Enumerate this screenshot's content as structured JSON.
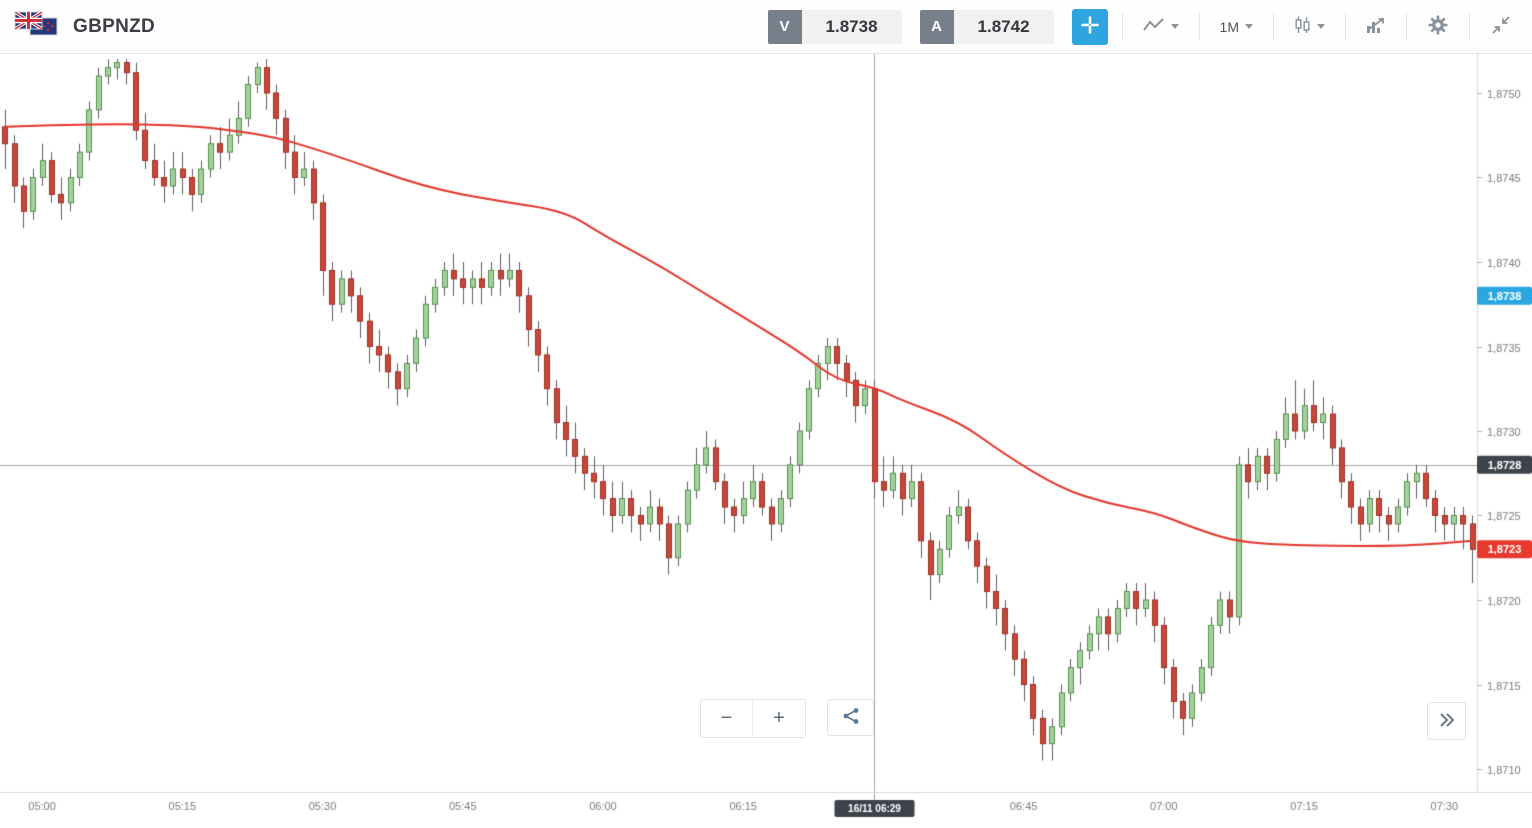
{
  "header": {
    "symbol": "GBPNZD",
    "sell": {
      "label": "V",
      "value": "1.8738"
    },
    "ask": {
      "label": "A",
      "value": "1.8742"
    },
    "timeframe": {
      "label": "1M"
    }
  },
  "controls": {
    "zoom_out": "−",
    "zoom_in": "+"
  },
  "icons": {
    "flags": "gbp-nzd-flag-pair",
    "crosshair": "crosshair-plus",
    "chart_type": "line-chart",
    "candle_style": "candlesticks",
    "indicators": "histogram-with-arrow",
    "settings": "gear",
    "collapse": "collapse-diagonal-arrows",
    "share": "share-nodes",
    "expand_panel": "double-chevron-right"
  },
  "axis": {
    "price_labels": [
      {
        "p": 1.875,
        "t": "1,8750"
      },
      {
        "p": 1.8745,
        "t": "1,8745"
      },
      {
        "p": 1.874,
        "t": "1,8740"
      },
      {
        "p": 1.8735,
        "t": "1,8735"
      },
      {
        "p": 1.873,
        "t": "1,8730"
      },
      {
        "p": 1.8725,
        "t": "1,8725"
      },
      {
        "p": 1.872,
        "t": "1,8720"
      },
      {
        "p": 1.8715,
        "t": "1,8715"
      },
      {
        "p": 1.871,
        "t": "1,8710"
      }
    ],
    "time_labels": [
      {
        "i": 4,
        "t": "05:00"
      },
      {
        "i": 19,
        "t": "05:15"
      },
      {
        "i": 34,
        "t": "05:30"
      },
      {
        "i": 49,
        "t": "05:45"
      },
      {
        "i": 64,
        "t": "06:00"
      },
      {
        "i": 79,
        "t": "06:15"
      },
      {
        "i": 94,
        "t": "06:30"
      },
      {
        "i": 109,
        "t": "06:45"
      },
      {
        "i": 124,
        "t": "07:00"
      },
      {
        "i": 139,
        "t": "07:15"
      },
      {
        "i": 154,
        "t": "07:30"
      }
    ],
    "badges": {
      "sell": {
        "price": 1.8738,
        "text": "1,8738",
        "color": "#2aa7e1"
      },
      "crosshair": {
        "price": 1.8728,
        "text": "1,8728",
        "color": "#3d444c"
      },
      "last": {
        "price": 1.8723,
        "text": "1,8723",
        "color": "#e8392e"
      }
    },
    "crosshair": {
      "i": 93,
      "price": 1.8728,
      "time_text": "16/11 06:29"
    }
  },
  "chart_data": {
    "type": "candlestick",
    "title": "GBPNZD 1-minute candlestick chart",
    "symbol": "GBPNZD",
    "interval": "1M",
    "date": "16/11",
    "visible_time_range": [
      "04:56",
      "07:33"
    ],
    "ylim": [
      1.8709,
      1.8753
    ],
    "grid": false,
    "price_axis_side": "right",
    "colors": {
      "up_fill": "#a5cf9f",
      "up_border": "#55934e",
      "down_fill": "#c8473b",
      "down_border": "#9e3226",
      "wick": "#5f5f5f",
      "crosshair": "#a6a6a6",
      "axis_text": "#7d7d7d",
      "axis_line": "#d9d9d9",
      "time_badge_bg": "#3c434b"
    },
    "ma_line": {
      "name": "moving-average",
      "color": "#e5352b",
      "points": [
        [
          0,
          1.8748
        ],
        [
          14,
          1.87483
        ],
        [
          27,
          1.87477
        ],
        [
          35,
          1.87464
        ],
        [
          45,
          1.87444
        ],
        [
          53,
          1.87436
        ],
        [
          60,
          1.8743
        ],
        [
          64,
          1.87416
        ],
        [
          70,
          1.87398
        ],
        [
          75,
          1.87381
        ],
        [
          80,
          1.87364
        ],
        [
          85,
          1.87347
        ],
        [
          89,
          1.8733
        ],
        [
          93,
          1.87326
        ],
        [
          96,
          1.87318
        ],
        [
          102,
          1.87306
        ],
        [
          107,
          1.87286
        ],
        [
          113,
          1.87266
        ],
        [
          118,
          1.87257
        ],
        [
          123,
          1.87252
        ],
        [
          127,
          1.87243
        ],
        [
          132,
          1.87234
        ],
        [
          140,
          1.87232
        ],
        [
          150,
          1.87232
        ],
        [
          157,
          1.87235
        ]
      ]
    },
    "candles": [
      [
        "04:56",
        1.8748,
        1.8749,
        1.87455,
        1.8747
      ],
      [
        "04:57",
        1.8747,
        1.87475,
        1.87435,
        1.87445
      ],
      [
        "04:58",
        1.87445,
        1.8745,
        1.8742,
        1.8743
      ],
      [
        "04:59",
        1.8743,
        1.87455,
        1.87425,
        1.8745
      ],
      [
        "05:00",
        1.8745,
        1.8747,
        1.87445,
        1.8746
      ],
      [
        "05:01",
        1.8746,
        1.87465,
        1.87435,
        1.8744
      ],
      [
        "05:02",
        1.8744,
        1.8745,
        1.87425,
        1.87435
      ],
      [
        "05:03",
        1.87435,
        1.87455,
        1.8743,
        1.8745
      ],
      [
        "05:04",
        1.8745,
        1.8747,
        1.87445,
        1.87465
      ],
      [
        "05:05",
        1.87465,
        1.87495,
        1.8746,
        1.8749
      ],
      [
        "05:06",
        1.8749,
        1.87515,
        1.87485,
        1.8751
      ],
      [
        "05:07",
        1.8751,
        1.8752,
        1.87505,
        1.87515
      ],
      [
        "05:08",
        1.87515,
        1.8752,
        1.87508,
        1.87518
      ],
      [
        "05:09",
        1.87518,
        1.8752,
        1.87505,
        1.87512
      ],
      [
        "05:10",
        1.87512,
        1.87518,
        1.87472,
        1.87478
      ],
      [
        "05:11",
        1.87478,
        1.87488,
        1.87455,
        1.8746
      ],
      [
        "05:12",
        1.8746,
        1.8747,
        1.87445,
        1.8745
      ],
      [
        "05:13",
        1.8745,
        1.8746,
        1.87435,
        1.87445
      ],
      [
        "05:14",
        1.87445,
        1.87465,
        1.8744,
        1.87455
      ],
      [
        "05:15",
        1.87455,
        1.87465,
        1.8744,
        1.8745
      ],
      [
        "05:16",
        1.8745,
        1.87455,
        1.8743,
        1.8744
      ],
      [
        "05:17",
        1.8744,
        1.8746,
        1.87435,
        1.87455
      ],
      [
        "05:18",
        1.87455,
        1.87475,
        1.8745,
        1.8747
      ],
      [
        "05:19",
        1.8747,
        1.8748,
        1.87455,
        1.87465
      ],
      [
        "05:20",
        1.87465,
        1.87485,
        1.8746,
        1.87475
      ],
      [
        "05:21",
        1.87475,
        1.87495,
        1.8747,
        1.87485
      ],
      [
        "05:22",
        1.87485,
        1.8751,
        1.8748,
        1.87505
      ],
      [
        "05:23",
        1.87505,
        1.87518,
        1.875,
        1.87515
      ],
      [
        "05:24",
        1.87515,
        1.8752,
        1.8749,
        1.875
      ],
      [
        "05:25",
        1.875,
        1.87505,
        1.87475,
        1.87485
      ],
      [
        "05:26",
        1.87485,
        1.8749,
        1.87455,
        1.87465
      ],
      [
        "05:27",
        1.87465,
        1.87475,
        1.8744,
        1.8745
      ],
      [
        "05:28",
        1.8745,
        1.87465,
        1.87445,
        1.87455
      ],
      [
        "05:29",
        1.87455,
        1.8746,
        1.87425,
        1.87435
      ],
      [
        "05:30",
        1.87435,
        1.8744,
        1.8738,
        1.87395
      ],
      [
        "05:31",
        1.87395,
        1.874,
        1.87365,
        1.87375
      ],
      [
        "05:32",
        1.87375,
        1.87395,
        1.8737,
        1.8739
      ],
      [
        "05:33",
        1.8739,
        1.87395,
        1.8737,
        1.8738
      ],
      [
        "05:34",
        1.8738,
        1.87385,
        1.87355,
        1.87365
      ],
      [
        "05:35",
        1.87365,
        1.8737,
        1.8734,
        1.8735
      ],
      [
        "05:36",
        1.8735,
        1.8736,
        1.87335,
        1.87345
      ],
      [
        "05:37",
        1.87345,
        1.8735,
        1.87325,
        1.87335
      ],
      [
        "05:38",
        1.87335,
        1.8734,
        1.87315,
        1.87325
      ],
      [
        "05:39",
        1.87325,
        1.87345,
        1.8732,
        1.8734
      ],
      [
        "05:40",
        1.8734,
        1.8736,
        1.87335,
        1.87355
      ],
      [
        "05:41",
        1.87355,
        1.8738,
        1.8735,
        1.87375
      ],
      [
        "05:42",
        1.87375,
        1.8739,
        1.8737,
        1.87385
      ],
      [
        "05:43",
        1.87385,
        1.874,
        1.8738,
        1.87395
      ],
      [
        "05:44",
        1.87395,
        1.87405,
        1.8738,
        1.8739
      ],
      [
        "05:45",
        1.8739,
        1.874,
        1.87375,
        1.87385
      ],
      [
        "05:46",
        1.87385,
        1.87395,
        1.87375,
        1.8739
      ],
      [
        "05:47",
        1.8739,
        1.874,
        1.87375,
        1.87385
      ],
      [
        "05:48",
        1.87385,
        1.874,
        1.8738,
        1.87395
      ],
      [
        "05:49",
        1.87395,
        1.87405,
        1.8738,
        1.8739
      ],
      [
        "05:50",
        1.8739,
        1.87405,
        1.87385,
        1.87395
      ],
      [
        "05:51",
        1.87395,
        1.874,
        1.8737,
        1.8738
      ],
      [
        "05:52",
        1.8738,
        1.87385,
        1.8735,
        1.8736
      ],
      [
        "05:53",
        1.8736,
        1.87365,
        1.87335,
        1.87345
      ],
      [
        "05:54",
        1.87345,
        1.8735,
        1.87315,
        1.87325
      ],
      [
        "05:55",
        1.87325,
        1.8733,
        1.87295,
        1.87305
      ],
      [
        "05:56",
        1.87305,
        1.87315,
        1.87285,
        1.87295
      ],
      [
        "05:57",
        1.87295,
        1.87305,
        1.87275,
        1.87285
      ],
      [
        "05:58",
        1.87285,
        1.8729,
        1.87265,
        1.87275
      ],
      [
        "05:59",
        1.87275,
        1.87285,
        1.8726,
        1.8727
      ],
      [
        "06:00",
        1.8727,
        1.8728,
        1.8725,
        1.8726
      ],
      [
        "06:01",
        1.8726,
        1.8727,
        1.8724,
        1.8725
      ],
      [
        "06:02",
        1.8725,
        1.8727,
        1.87245,
        1.8726
      ],
      [
        "06:03",
        1.8726,
        1.87265,
        1.8724,
        1.8725
      ],
      [
        "06:04",
        1.8725,
        1.87255,
        1.87235,
        1.87245
      ],
      [
        "06:05",
        1.87245,
        1.87265,
        1.8724,
        1.87255
      ],
      [
        "06:06",
        1.87255,
        1.8726,
        1.87235,
        1.87245
      ],
      [
        "06:07",
        1.87245,
        1.8725,
        1.87215,
        1.87225
      ],
      [
        "06:08",
        1.87225,
        1.8725,
        1.8722,
        1.87245
      ],
      [
        "06:09",
        1.87245,
        1.8727,
        1.8724,
        1.87265
      ],
      [
        "06:10",
        1.87265,
        1.8729,
        1.8726,
        1.8728
      ],
      [
        "06:11",
        1.8728,
        1.873,
        1.87275,
        1.8729
      ],
      [
        "06:12",
        1.8729,
        1.87295,
        1.87265,
        1.8727
      ],
      [
        "06:13",
        1.8727,
        1.87275,
        1.87245,
        1.87255
      ],
      [
        "06:14",
        1.87255,
        1.8726,
        1.8724,
        1.8725
      ],
      [
        "06:15",
        1.8725,
        1.8727,
        1.87245,
        1.8726
      ],
      [
        "06:16",
        1.8726,
        1.8728,
        1.87255,
        1.8727
      ],
      [
        "06:17",
        1.8727,
        1.87275,
        1.8725,
        1.87255
      ],
      [
        "06:18",
        1.87255,
        1.8726,
        1.87235,
        1.87245
      ],
      [
        "06:19",
        1.87245,
        1.87265,
        1.8724,
        1.8726
      ],
      [
        "06:20",
        1.8726,
        1.87285,
        1.87255,
        1.8728
      ],
      [
        "06:21",
        1.8728,
        1.87305,
        1.87275,
        1.873
      ],
      [
        "06:22",
        1.873,
        1.8733,
        1.87295,
        1.87325
      ],
      [
        "06:23",
        1.87325,
        1.87345,
        1.8732,
        1.8734
      ],
      [
        "06:24",
        1.8734,
        1.87355,
        1.8733,
        1.8735
      ],
      [
        "06:25",
        1.8735,
        1.87355,
        1.8733,
        1.8734
      ],
      [
        "06:26",
        1.8734,
        1.87345,
        1.8732,
        1.8733
      ],
      [
        "06:27",
        1.8733,
        1.87335,
        1.87305,
        1.87315
      ],
      [
        "06:28",
        1.87315,
        1.8733,
        1.8731,
        1.87325
      ],
      [
        "06:29",
        1.87325,
        1.8733,
        1.8726,
        1.8727
      ],
      [
        "06:30",
        1.8727,
        1.87285,
        1.87255,
        1.87265
      ],
      [
        "06:31",
        1.87265,
        1.87285,
        1.8726,
        1.87275
      ],
      [
        "06:32",
        1.87275,
        1.8728,
        1.8725,
        1.8726
      ],
      [
        "06:33",
        1.8726,
        1.8728,
        1.87255,
        1.8727
      ],
      [
        "06:34",
        1.8727,
        1.87275,
        1.87225,
        1.87235
      ],
      [
        "06:35",
        1.87235,
        1.8724,
        1.872,
        1.87215
      ],
      [
        "06:36",
        1.87215,
        1.87235,
        1.8721,
        1.8723
      ],
      [
        "06:37",
        1.8723,
        1.87255,
        1.87225,
        1.8725
      ],
      [
        "06:38",
        1.8725,
        1.87265,
        1.87245,
        1.87255
      ],
      [
        "06:39",
        1.87255,
        1.8726,
        1.8723,
        1.87235
      ],
      [
        "06:40",
        1.87235,
        1.8724,
        1.8721,
        1.8722
      ],
      [
        "06:41",
        1.8722,
        1.87225,
        1.87195,
        1.87205
      ],
      [
        "06:42",
        1.87205,
        1.87215,
        1.87185,
        1.87195
      ],
      [
        "06:43",
        1.87195,
        1.872,
        1.8717,
        1.8718
      ],
      [
        "06:44",
        1.8718,
        1.87185,
        1.87155,
        1.87165
      ],
      [
        "06:45",
        1.87165,
        1.8717,
        1.8714,
        1.8715
      ],
      [
        "06:46",
        1.8715,
        1.87155,
        1.8712,
        1.8713
      ],
      [
        "06:47",
        1.8713,
        1.87135,
        1.87105,
        1.87115
      ],
      [
        "06:48",
        1.87115,
        1.8713,
        1.87105,
        1.87125
      ],
      [
        "06:49",
        1.87125,
        1.8715,
        1.8712,
        1.87145
      ],
      [
        "06:50",
        1.87145,
        1.87165,
        1.8714,
        1.8716
      ],
      [
        "06:51",
        1.8716,
        1.87175,
        1.8715,
        1.8717
      ],
      [
        "06:52",
        1.8717,
        1.87185,
        1.87165,
        1.8718
      ],
      [
        "06:53",
        1.8718,
        1.87195,
        1.8717,
        1.8719
      ],
      [
        "06:54",
        1.8719,
        1.87195,
        1.8717,
        1.8718
      ],
      [
        "06:55",
        1.8718,
        1.872,
        1.87175,
        1.87195
      ],
      [
        "06:56",
        1.87195,
        1.8721,
        1.8719,
        1.87205
      ],
      [
        "06:57",
        1.87205,
        1.8721,
        1.87185,
        1.87195
      ],
      [
        "06:58",
        1.87195,
        1.8721,
        1.8719,
        1.872
      ],
      [
        "06:59",
        1.872,
        1.87205,
        1.87175,
        1.87185
      ],
      [
        "07:00",
        1.87185,
        1.8719,
        1.8715,
        1.8716
      ],
      [
        "07:01",
        1.8716,
        1.87165,
        1.8713,
        1.8714
      ],
      [
        "07:02",
        1.8714,
        1.87145,
        1.8712,
        1.8713
      ],
      [
        "07:03",
        1.8713,
        1.8715,
        1.87125,
        1.87145
      ],
      [
        "07:04",
        1.87145,
        1.87165,
        1.8714,
        1.8716
      ],
      [
        "07:05",
        1.8716,
        1.8719,
        1.87155,
        1.87185
      ],
      [
        "07:06",
        1.87185,
        1.87205,
        1.8718,
        1.872
      ],
      [
        "07:07",
        1.872,
        1.87205,
        1.8718,
        1.8719
      ],
      [
        "07:08",
        1.8719,
        1.87285,
        1.87185,
        1.8728
      ],
      [
        "07:09",
        1.8728,
        1.8729,
        1.8726,
        1.8727
      ],
      [
        "07:10",
        1.8727,
        1.8729,
        1.87265,
        1.87285
      ],
      [
        "07:11",
        1.87285,
        1.8729,
        1.87265,
        1.87275
      ],
      [
        "07:12",
        1.87275,
        1.873,
        1.8727,
        1.87295
      ],
      [
        "07:13",
        1.87295,
        1.8732,
        1.8729,
        1.8731
      ],
      [
        "07:14",
        1.8731,
        1.8733,
        1.87295,
        1.873
      ],
      [
        "07:15",
        1.873,
        1.87325,
        1.87295,
        1.87315
      ],
      [
        "07:16",
        1.87315,
        1.8733,
        1.873,
        1.87305
      ],
      [
        "07:17",
        1.87305,
        1.8732,
        1.87295,
        1.8731
      ],
      [
        "07:18",
        1.8731,
        1.87315,
        1.8728,
        1.8729
      ],
      [
        "07:19",
        1.8729,
        1.87295,
        1.8726,
        1.8727
      ],
      [
        "07:20",
        1.8727,
        1.87275,
        1.87245,
        1.87255
      ],
      [
        "07:21",
        1.87255,
        1.8726,
        1.87235,
        1.87245
      ],
      [
        "07:22",
        1.87245,
        1.87265,
        1.8724,
        1.8726
      ],
      [
        "07:23",
        1.8726,
        1.87265,
        1.8724,
        1.8725
      ],
      [
        "07:24",
        1.8725,
        1.87255,
        1.87235,
        1.87245
      ],
      [
        "07:25",
        1.87245,
        1.8726,
        1.8724,
        1.87255
      ],
      [
        "07:26",
        1.87255,
        1.87275,
        1.8725,
        1.8727
      ],
      [
        "07:27",
        1.8727,
        1.8728,
        1.8726,
        1.87275
      ],
      [
        "07:28",
        1.87275,
        1.8728,
        1.87255,
        1.8726
      ],
      [
        "07:29",
        1.8726,
        1.87265,
        1.8724,
        1.8725
      ],
      [
        "07:30",
        1.8725,
        1.87255,
        1.87235,
        1.87245
      ],
      [
        "07:31",
        1.87245,
        1.87255,
        1.87235,
        1.8725
      ],
      [
        "07:32",
        1.8725,
        1.87255,
        1.8723,
        1.87245
      ],
      [
        "07:33",
        1.87245,
        1.8725,
        1.8721,
        1.8723
      ]
    ]
  }
}
